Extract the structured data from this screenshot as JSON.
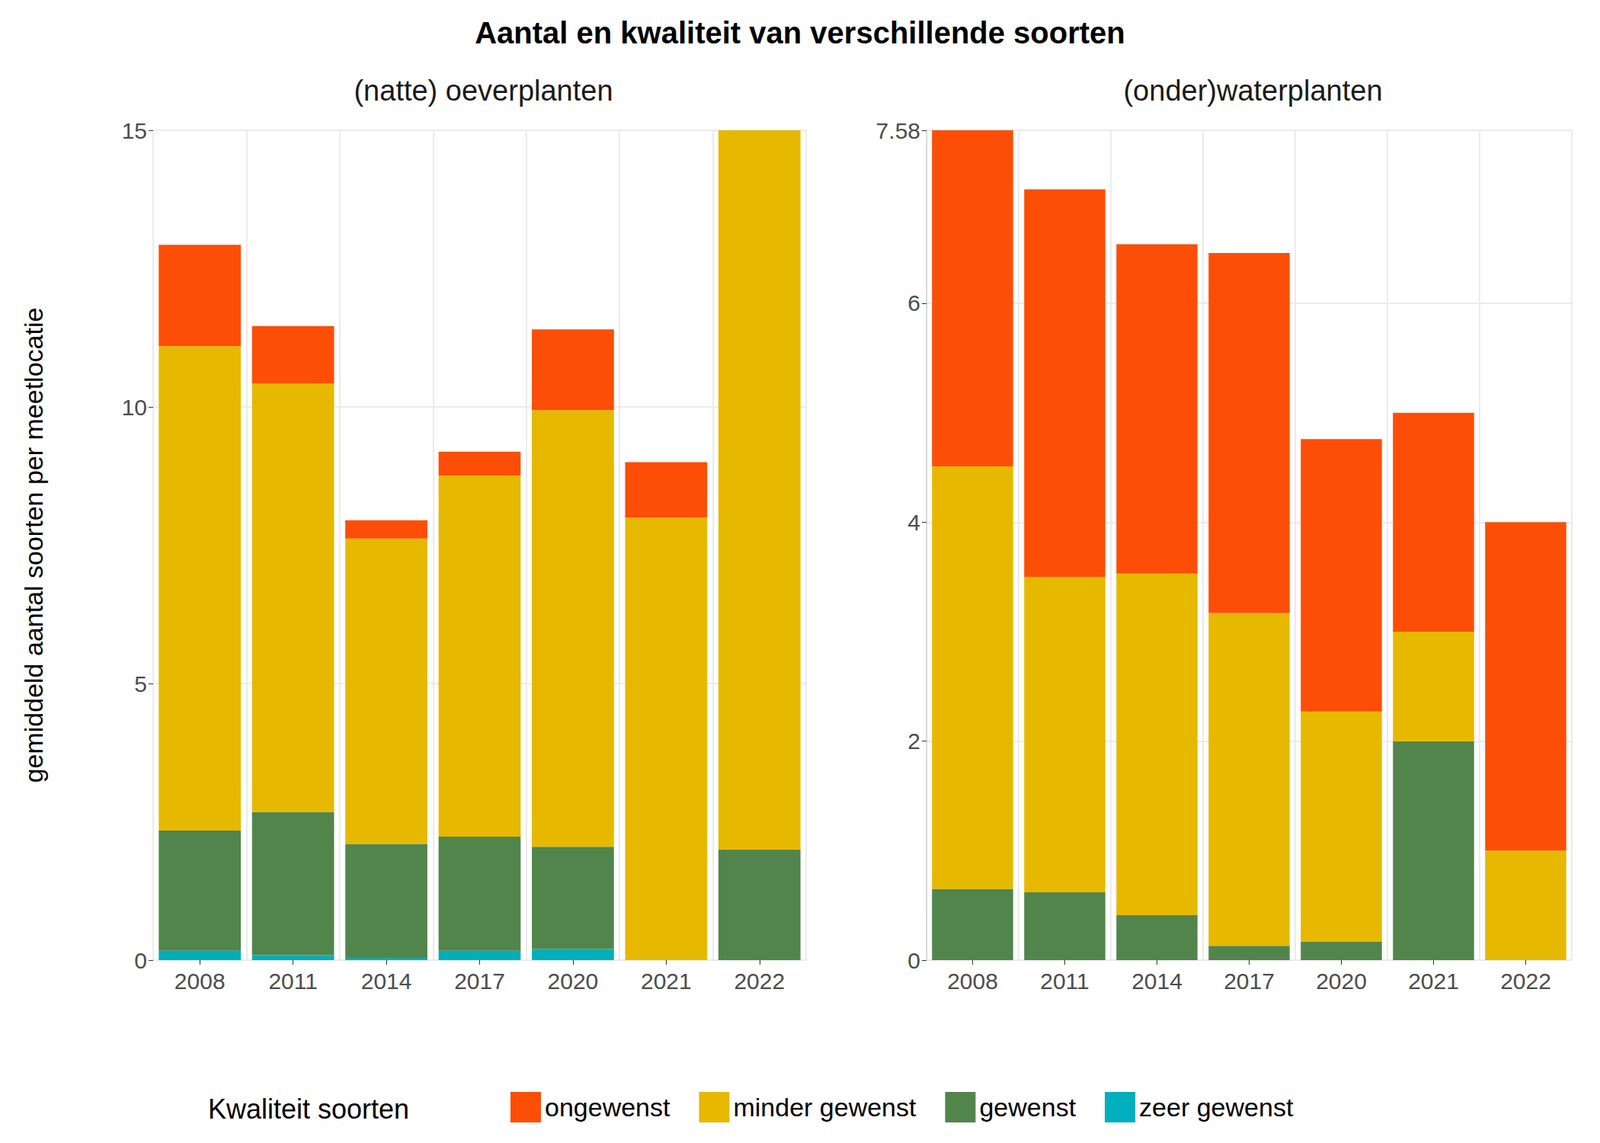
{
  "chart_data": [
    {
      "type": "bar",
      "stacked": true,
      "grid": true,
      "legend": "bottom",
      "title": "Aantal en kwaliteit van verschillende soorten",
      "subtitle": "(natte) oeverplanten",
      "ylabel": "gemiddeld aantal soorten per meetlocatie",
      "legend_title": "Kwaliteit soorten",
      "categories": [
        "2008",
        "2011",
        "2014",
        "2017",
        "2020",
        "2021",
        "2022"
      ],
      "ylim": [
        0,
        15
      ],
      "yticks": [
        0,
        5,
        10,
        15
      ],
      "series": [
        {
          "name": "ongewenst",
          "color": "#FC4E07",
          "values": [
            1.83,
            1.04,
            0.33,
            0.43,
            1.46,
            1.0,
            0
          ]
        },
        {
          "name": "minder gewenst",
          "color": "#E7B800",
          "values": [
            8.76,
            7.74,
            5.52,
            6.53,
            7.89,
            8.0,
            13.0
          ]
        },
        {
          "name": "gewenst",
          "color": "#52854C",
          "values": [
            2.17,
            2.59,
            2.06,
            2.06,
            1.85,
            0,
            2.0
          ]
        },
        {
          "name": "zeer gewenst",
          "color": "#00AFBB",
          "values": [
            0.17,
            0.09,
            0.04,
            0.17,
            0.2,
            0,
            0
          ]
        }
      ]
    },
    {
      "type": "bar",
      "stacked": true,
      "grid": true,
      "subtitle": "(onder)waterplanten",
      "categories": [
        "2008",
        "2011",
        "2014",
        "2017",
        "2020",
        "2021",
        "2022"
      ],
      "ylim": [
        0,
        7.58
      ],
      "yticks": [
        0,
        2,
        4,
        6
      ],
      "series": [
        {
          "name": "ongewenst",
          "color": "#FC4E07",
          "values": [
            3.07,
            3.54,
            3.01,
            3.29,
            2.49,
            2.0,
            3.0
          ]
        },
        {
          "name": "minder gewenst",
          "color": "#E7B800",
          "values": [
            3.86,
            2.88,
            3.12,
            3.04,
            2.1,
            1.0,
            1.0
          ]
        },
        {
          "name": "gewenst",
          "color": "#52854C",
          "values": [
            0.65,
            0.62,
            0.41,
            0.13,
            0.17,
            2.0,
            0
          ]
        },
        {
          "name": "zeer gewenst",
          "color": "#00AFBB",
          "values": [
            0,
            0,
            0,
            0,
            0,
            0,
            0
          ]
        }
      ]
    }
  ]
}
